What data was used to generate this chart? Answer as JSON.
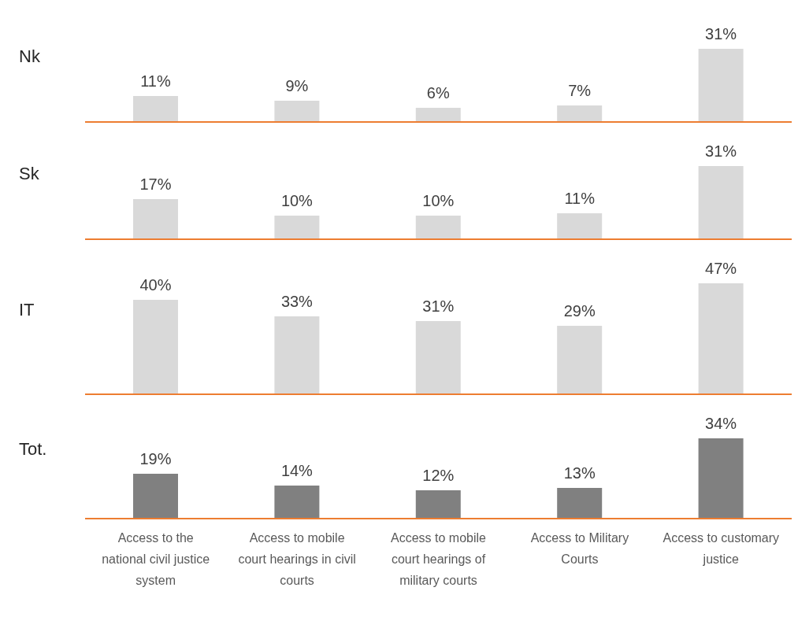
{
  "chart_data": [
    {
      "type": "bar",
      "ylabel": "Nk",
      "categories": [
        null,
        null,
        null,
        null,
        null
      ],
      "values": [
        11,
        9,
        6,
        7,
        31
      ],
      "value_labels": [
        "11%",
        "9%",
        "6%",
        "7%",
        "31%"
      ],
      "color": "#d9d9d9",
      "tick_labels": false
    },
    {
      "type": "bar",
      "ylabel": "Sk",
      "categories": [
        null,
        null,
        null,
        null,
        null
      ],
      "values": [
        17,
        10,
        10,
        11,
        31
      ],
      "value_labels": [
        "17%",
        "10%",
        "10%",
        "11%",
        "31%"
      ],
      "color": "#d9d9d9",
      "tick_labels": false
    },
    {
      "type": "bar",
      "ylabel": "IT",
      "categories": [
        null,
        null,
        null,
        null,
        null
      ],
      "values": [
        40,
        33,
        31,
        29,
        47
      ],
      "value_labels": [
        "40%",
        "33%",
        "31%",
        "29%",
        "47%"
      ],
      "color": "#d9d9d9",
      "tick_labels": false
    },
    {
      "type": "bar",
      "ylabel": "Tot.",
      "categories": [
        "Access to the national civil justice system",
        "Access to mobile court hearings in civil courts",
        "Access to mobile court hearings of military courts",
        "Access to Military Courts",
        "Access to customary justice"
      ],
      "values": [
        19,
        14,
        12,
        13,
        34
      ],
      "value_labels": [
        "19%",
        "14%",
        "12%",
        "13%",
        "34%"
      ],
      "color": "#808080",
      "tick_labels": "x"
    }
  ]
}
